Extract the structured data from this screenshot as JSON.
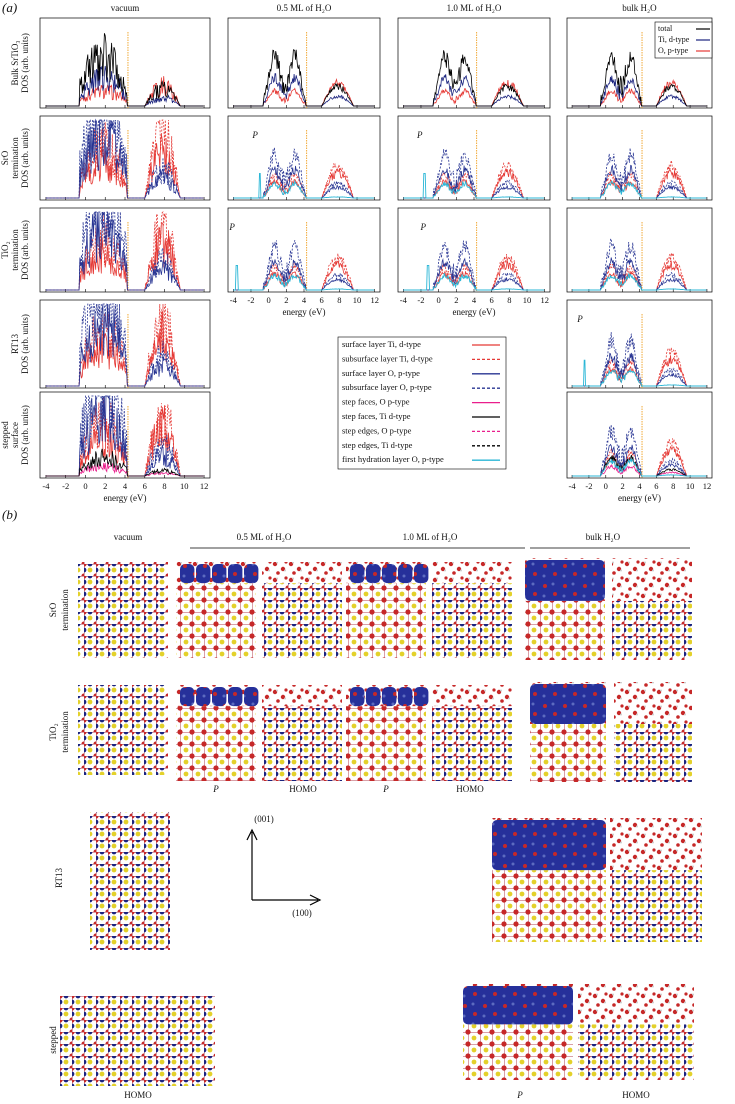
{
  "panel_a": {
    "label": "(a)",
    "columns": [
      "vacuum",
      "0.5 ML of H₂O",
      "1.0 ML of H₂O",
      "bulk H₂O"
    ],
    "rows": [
      [
        "Bulk SrTiO₃",
        "DOS (arb. units)"
      ],
      [
        "SrO",
        "termination",
        "DOS (arb. units)"
      ],
      [
        "TiO₂",
        "termination",
        "DOS (arb. units)"
      ],
      [
        "RT13",
        "DOS (arb. units)"
      ],
      [
        "stepped",
        "surface",
        "DOS (arb. units)"
      ]
    ],
    "top_legend": [
      {
        "label": "total",
        "color": "#000000"
      },
      {
        "label": "Ti, d-type",
        "color": "#1a237e"
      },
      {
        "label": "O, p-type",
        "color": "#e53935"
      }
    ],
    "legend": [
      {
        "label": "surface layer Ti, d-type",
        "color": "#e53935",
        "dashed": false
      },
      {
        "label": "subsurface layer Ti, d-type",
        "color": "#e53935",
        "dashed": true
      },
      {
        "label": "surface layer O, p-type",
        "color": "#283593",
        "dashed": false
      },
      {
        "label": "subsurface layer O, p-type",
        "color": "#283593",
        "dashed": true
      },
      {
        "label": "step faces, O p-type",
        "color": "#e91e8c",
        "dashed": false
      },
      {
        "label": "step faces, Ti d-type",
        "color": "#000000",
        "dashed": false
      },
      {
        "label": "step edges, O p-type",
        "color": "#e91e8c",
        "dashed": true
      },
      {
        "label": "step edges, Ti d-type",
        "color": "#000000",
        "dashed": true
      },
      {
        "label": "first hydration layer O, p-type",
        "color": "#29b6d6",
        "dashed": false
      }
    ],
    "x_ticks": [
      -4,
      -2,
      0,
      2,
      4,
      6,
      8,
      10,
      12
    ],
    "x_label": "energy (eV)",
    "peak_label": "P"
  },
  "panel_b": {
    "label": "(b)",
    "columns": [
      "vacuum",
      "0.5 ML of H₂O",
      "1.0 ML of H₂O",
      "bulk H₂O"
    ],
    "rows": [
      [
        "SrO",
        "termination"
      ],
      [
        "TiO₂",
        "termination"
      ],
      [
        "RT13"
      ],
      [
        "stepped",
        "surface"
      ]
    ],
    "captions": [
      "P",
      "HOMO"
    ],
    "axes": [
      "(001)",
      "(100)"
    ]
  }
}
